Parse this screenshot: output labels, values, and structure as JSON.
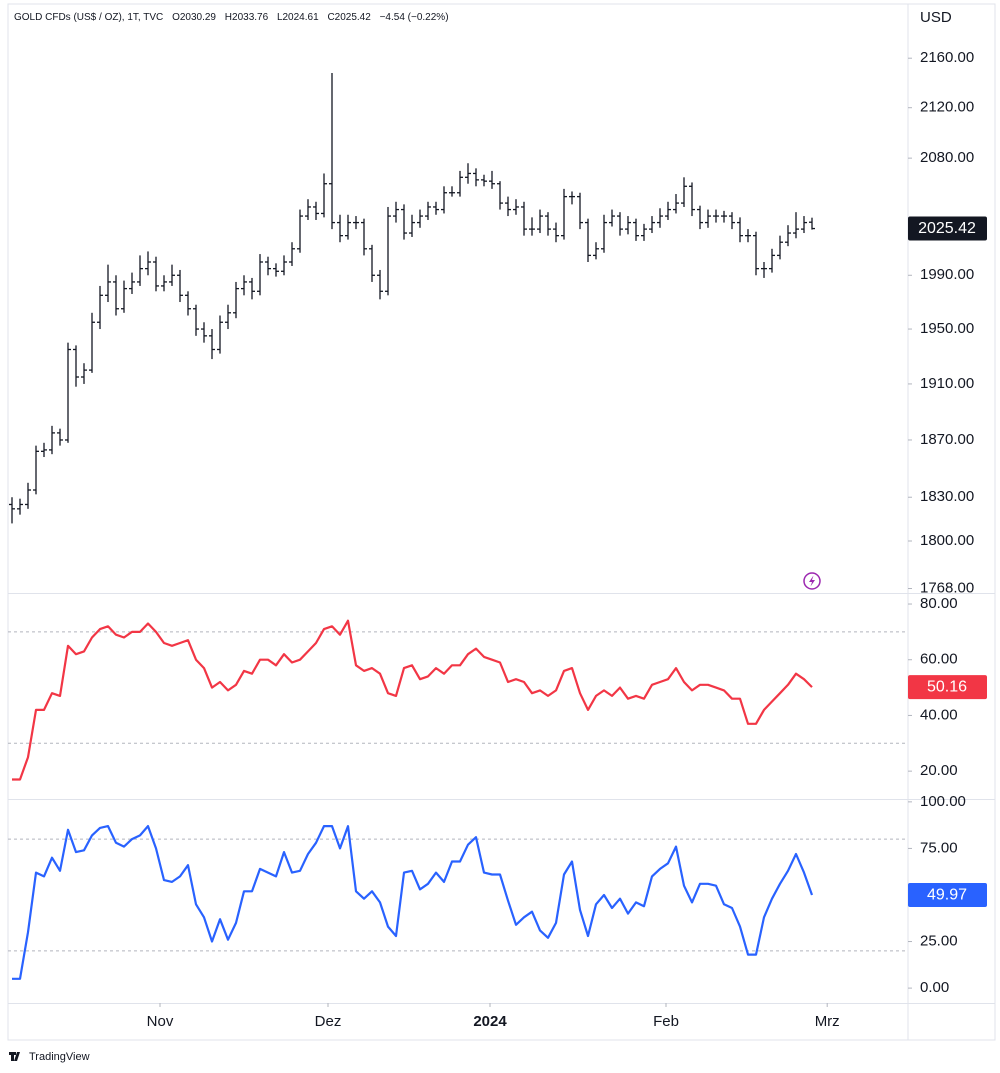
{
  "header": {
    "title": "GOLD CFDs (US$ / OZ), 1T, TVC",
    "legend": [
      "O2030.29",
      "H2033.76",
      "L2024.61",
      "C2025.42",
      "−4.54 (−0.22%)"
    ]
  },
  "footer": "TradingView",
  "chart_data": [
    {
      "type": "ohlc",
      "y_label": "USD",
      "color": "#131722",
      "log": true,
      "ylim": [
        1765,
        2208
      ],
      "yticks": [
        {
          "value": 2160,
          "label": "2160.00"
        },
        {
          "value": 2120,
          "label": "2120.00"
        },
        {
          "value": 2080,
          "label": "2080.00"
        },
        {
          "value": 1990,
          "label": "1990.00"
        },
        {
          "value": 1950,
          "label": "1950.00"
        },
        {
          "value": 1910,
          "label": "1910.00"
        },
        {
          "value": 1870,
          "label": "1870.00"
        },
        {
          "value": 1830,
          "label": "1830.00"
        },
        {
          "value": 1800,
          "label": "1800.00"
        },
        {
          "value": 1768,
          "label": "1768.00"
        }
      ],
      "ohlc": [
        [
          1825,
          1830,
          1812,
          1822
        ],
        [
          1822,
          1829,
          1818,
          1825
        ],
        [
          1825,
          1840,
          1822,
          1835
        ],
        [
          1835,
          1866,
          1832,
          1862
        ],
        [
          1862,
          1868,
          1858,
          1863
        ],
        [
          1863,
          1880,
          1860,
          1875
        ],
        [
          1875,
          1878,
          1866,
          1870
        ],
        [
          1870,
          1940,
          1868,
          1935
        ],
        [
          1935,
          1938,
          1908,
          1915
        ],
        [
          1915,
          1925,
          1910,
          1920
        ],
        [
          1920,
          1962,
          1918,
          1955
        ],
        [
          1955,
          1982,
          1950,
          1975
        ],
        [
          1975,
          1998,
          1970,
          1985
        ],
        [
          1985,
          1990,
          1960,
          1965
        ],
        [
          1965,
          1986,
          1962,
          1980
        ],
        [
          1980,
          1992,
          1976,
          1985
        ],
        [
          1985,
          2005,
          1982,
          1995
        ],
        [
          1995,
          2008,
          1990,
          2000
        ],
        [
          2000,
          2004,
          1978,
          1982
        ],
        [
          1982,
          1990,
          1978,
          1985
        ],
        [
          1985,
          1998,
          1982,
          1990
        ],
        [
          1990,
          1994,
          1970,
          1975
        ],
        [
          1975,
          1978,
          1960,
          1965
        ],
        [
          1965,
          1968,
          1945,
          1950
        ],
        [
          1950,
          1955,
          1940,
          1945
        ],
        [
          1945,
          1950,
          1928,
          1935
        ],
        [
          1935,
          1960,
          1932,
          1955
        ],
        [
          1955,
          1968,
          1950,
          1962
        ],
        [
          1962,
          1985,
          1958,
          1980
        ],
        [
          1980,
          1990,
          1975,
          1985
        ],
        [
          1985,
          1988,
          1972,
          1978
        ],
        [
          1978,
          2006,
          1975,
          2000
        ],
        [
          2000,
          2004,
          1990,
          1995
        ],
        [
          1995,
          1999,
          1989,
          1993
        ],
        [
          1993,
          2005,
          1990,
          2000
        ],
        [
          2000,
          2015,
          1997,
          2010
        ],
        [
          2010,
          2040,
          2007,
          2035
        ],
        [
          2035,
          2048,
          2032,
          2042
        ],
        [
          2042,
          2046,
          2032,
          2037
        ],
        [
          2037,
          2068,
          2034,
          2060
        ],
        [
          2060,
          2148,
          2025,
          2030
        ],
        [
          2030,
          2036,
          2015,
          2020
        ],
        [
          2020,
          2036,
          2017,
          2030
        ],
        [
          2030,
          2035,
          2025,
          2030
        ],
        [
          2030,
          2033,
          2005,
          2010
        ],
        [
          2010,
          2013,
          1985,
          1990
        ],
        [
          1990,
          1994,
          1972,
          1978
        ],
        [
          1978,
          2042,
          1975,
          2035
        ],
        [
          2035,
          2046,
          2030,
          2040
        ],
        [
          2040,
          2044,
          2017,
          2022
        ],
        [
          2022,
          2036,
          2019,
          2030
        ],
        [
          2030,
          2040,
          2026,
          2035
        ],
        [
          2035,
          2046,
          2032,
          2042
        ],
        [
          2042,
          2046,
          2036,
          2040
        ],
        [
          2040,
          2058,
          2037,
          2053
        ],
        [
          2053,
          2058,
          2050,
          2053
        ],
        [
          2053,
          2070,
          2050,
          2065
        ],
        [
          2065,
          2076,
          2060,
          2068
        ],
        [
          2068,
          2072,
          2058,
          2063
        ],
        [
          2063,
          2067,
          2058,
          2062
        ],
        [
          2062,
          2070,
          2056,
          2060
        ],
        [
          2060,
          2062,
          2040,
          2045
        ],
        [
          2045,
          2050,
          2035,
          2040
        ],
        [
          2040,
          2048,
          2036,
          2042
        ],
        [
          2042,
          2046,
          2020,
          2025
        ],
        [
          2025,
          2034,
          2020,
          2025
        ],
        [
          2025,
          2040,
          2022,
          2035
        ],
        [
          2035,
          2038,
          2020,
          2025
        ],
        [
          2025,
          2030,
          2015,
          2020
        ],
        [
          2020,
          2056,
          2017,
          2050
        ],
        [
          2050,
          2054,
          2044,
          2050
        ],
        [
          2050,
          2053,
          2025,
          2030
        ],
        [
          2030,
          2033,
          2000,
          2005
        ],
        [
          2005,
          2015,
          2002,
          2010
        ],
        [
          2010,
          2036,
          2007,
          2030
        ],
        [
          2030,
          2040,
          2027,
          2035
        ],
        [
          2035,
          2038,
          2020,
          2025
        ],
        [
          2025,
          2035,
          2021,
          2030
        ],
        [
          2030,
          2033,
          2016,
          2020
        ],
        [
          2020,
          2029,
          2016,
          2025
        ],
        [
          2025,
          2035,
          2022,
          2030
        ],
        [
          2030,
          2041,
          2026,
          2035
        ],
        [
          2035,
          2046,
          2032,
          2040
        ],
        [
          2040,
          2052,
          2037,
          2045
        ],
        [
          2045,
          2065,
          2042,
          2058
        ],
        [
          2058,
          2061,
          2035,
          2040
        ],
        [
          2040,
          2043,
          2025,
          2030
        ],
        [
          2030,
          2040,
          2026,
          2035
        ],
        [
          2035,
          2040,
          2030,
          2035
        ],
        [
          2035,
          2039,
          2030,
          2035
        ],
        [
          2035,
          2038,
          2025,
          2030
        ],
        [
          2030,
          2034,
          2015,
          2020
        ],
        [
          2020,
          2025,
          2015,
          2020
        ],
        [
          2020,
          2023,
          1990,
          1995
        ],
        [
          1995,
          2000,
          1988,
          1995
        ],
        [
          1995,
          2010,
          1992,
          2005
        ],
        [
          2005,
          2020,
          2002,
          2015
        ],
        [
          2015,
          2028,
          2012,
          2022
        ],
        [
          2022,
          2038,
          2018,
          2025
        ],
        [
          2025,
          2035,
          2022,
          2030
        ],
        [
          2030.29,
          2033.76,
          2024.61,
          2025.42
        ]
      ]
    },
    {
      "type": "line",
      "color": "#f23645",
      "ylim": [
        10,
        83.6
      ],
      "bands": [
        70,
        30
      ],
      "yticks": [
        {
          "value": 80,
          "label": "80.00"
        },
        {
          "value": 60,
          "label": "60.00"
        },
        {
          "value": 40,
          "label": "40.00"
        },
        {
          "value": 20,
          "label": "20.00"
        }
      ],
      "values": [
        17,
        17,
        25,
        42,
        42,
        48,
        47,
        65,
        62,
        63,
        68,
        71,
        72,
        69,
        68,
        70,
        70,
        73,
        70,
        66,
        65,
        66,
        67,
        60,
        57,
        50,
        52,
        49,
        51,
        56,
        55,
        60,
        60,
        58,
        62,
        59,
        60,
        63,
        66,
        71,
        72,
        69,
        74,
        58,
        56,
        57,
        55,
        48,
        47,
        57,
        58,
        53,
        54,
        57,
        55,
        58,
        58,
        62,
        64,
        61,
        60,
        59,
        52,
        53,
        52,
        48,
        49,
        47,
        49,
        56,
        57,
        48,
        42,
        47,
        49,
        47,
        50,
        46,
        47,
        46,
        51,
        52,
        53,
        57,
        52,
        49,
        51,
        51,
        50,
        49,
        46,
        46,
        37,
        37,
        42,
        45,
        48,
        51,
        55,
        53,
        50.16
      ]
    },
    {
      "type": "line",
      "color": "#2962ff",
      "ylim": [
        -8,
        101
      ],
      "bands": [
        80,
        20
      ],
      "yticks": [
        {
          "value": 100,
          "label": "100.00"
        },
        {
          "value": 75,
          "label": "75.00"
        },
        {
          "value": 25,
          "label": "25.00"
        },
        {
          "value": 0,
          "label": "0.00"
        }
      ],
      "values": [
        5,
        5,
        30,
        62,
        60,
        70,
        63,
        85,
        73,
        74,
        82,
        86,
        87,
        78,
        76,
        80,
        82,
        87,
        75,
        58,
        57,
        60,
        66,
        45,
        38,
        25,
        37,
        26,
        35,
        52,
        52,
        64,
        62,
        60,
        73,
        62,
        63,
        72,
        78,
        87,
        87,
        75,
        87,
        52,
        48,
        52,
        46,
        33,
        28,
        62,
        63,
        53,
        56,
        62,
        57,
        68,
        68,
        77,
        81,
        62,
        61,
        61,
        47,
        34,
        38,
        41,
        31,
        27,
        35,
        61,
        68,
        42,
        28,
        45,
        50,
        43,
        48,
        40,
        46,
        44,
        60,
        64,
        67,
        76,
        55,
        46,
        56,
        56,
        55,
        45,
        43,
        33,
        18,
        18,
        38,
        48,
        56,
        63,
        72,
        62,
        49.97
      ],
      "xlim": [
        -0.5,
        112
      ],
      "xticks": [
        {
          "value": 18.5,
          "label": "Nov"
        },
        {
          "value": 39.5,
          "label": "Dez"
        },
        {
          "value": 59.75,
          "label": "2024"
        },
        {
          "value": 81.75,
          "label": "Feb"
        },
        {
          "value": 101.9,
          "label": "Mrz"
        }
      ]
    }
  ]
}
